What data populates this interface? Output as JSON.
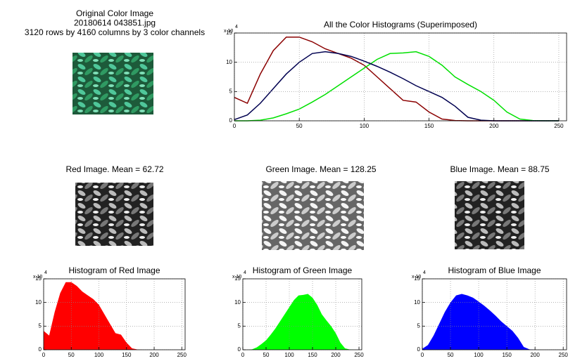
{
  "images": [
    {
      "title_lines": [
        "Original Color Image",
        "20180614 043851.jpg",
        "3120 rows by 4160 columns by 3 color channels"
      ]
    },
    {
      "title_lines": [
        "Red Image.  Mean =  62.72"
      ]
    },
    {
      "title_lines": [
        "Green Image.  Mean = 128.25"
      ]
    },
    {
      "title_lines": [
        "Blue Image.  Mean =  88.75"
      ]
    }
  ],
  "chart_data": [
    {
      "type": "line",
      "title": "All the Color Histograms (Superimposed)",
      "y_exponent": {
        "base": "x 10",
        "power": "4"
      },
      "x": [
        0,
        10,
        20,
        30,
        40,
        50,
        60,
        70,
        80,
        90,
        100,
        110,
        120,
        130,
        140,
        150,
        160,
        170,
        180,
        190,
        200,
        210,
        220,
        230,
        240,
        250
      ],
      "series": [
        {
          "name": "Red",
          "color": "#8b0000",
          "values": [
            4,
            3,
            8,
            12,
            14.3,
            14.3,
            13.5,
            12.3,
            11.5,
            10.7,
            9.5,
            7.5,
            5.5,
            3.5,
            3.2,
            1.5,
            0.3,
            0.05,
            0,
            0,
            0,
            0,
            0,
            0,
            0,
            0
          ]
        },
        {
          "name": "Green",
          "color": "#00e000",
          "values": [
            0,
            0,
            0.1,
            0.5,
            1.2,
            2,
            3.2,
            4.5,
            6,
            7.5,
            9,
            10.5,
            11.5,
            11.6,
            11.8,
            11,
            9.5,
            7.5,
            6.2,
            5,
            3.5,
            1.5,
            0.3,
            0.05,
            0,
            0
          ]
        },
        {
          "name": "Blue",
          "color": "#000050",
          "values": [
            0.2,
            1,
            3,
            5.5,
            8,
            10,
            11.5,
            11.8,
            11.5,
            11,
            10.2,
            9.3,
            8.3,
            7.2,
            6,
            5,
            4,
            2.5,
            0.6,
            0.1,
            0,
            0,
            0,
            0,
            0,
            0
          ]
        }
      ],
      "xlim": [
        0,
        256
      ],
      "xticks": [
        0,
        50,
        100,
        150,
        200,
        250
      ],
      "ylim": [
        0,
        15
      ],
      "yticks": [
        0,
        5,
        10,
        15
      ],
      "grid": true
    },
    {
      "type": "area",
      "title": "Histogram of Red Image",
      "y_exponent": {
        "base": "x 10",
        "power": "4"
      },
      "x": [
        0,
        10,
        20,
        30,
        40,
        50,
        60,
        70,
        80,
        90,
        100,
        110,
        120,
        130,
        140,
        150,
        160,
        170,
        180,
        190,
        200,
        210,
        220,
        230,
        240,
        250
      ],
      "values": [
        4,
        3,
        8,
        12,
        14.3,
        14.3,
        13.5,
        12.3,
        11.5,
        10.7,
        9.5,
        7.5,
        5.5,
        3.5,
        3.2,
        1.5,
        0.3,
        0.05,
        0,
        0,
        0,
        0,
        0,
        0,
        0,
        0
      ],
      "color": "#ff0000",
      "xlim": [
        0,
        256
      ],
      "xticks": [
        0,
        50,
        100,
        150,
        200,
        250
      ],
      "ylim": [
        0,
        15
      ],
      "yticks": [
        0,
        5,
        10,
        15
      ],
      "grid": true
    },
    {
      "type": "area",
      "title": "Histogram of Green Image",
      "y_exponent": {
        "base": "x 10",
        "power": "4"
      },
      "x": [
        0,
        10,
        20,
        30,
        40,
        50,
        60,
        70,
        80,
        90,
        100,
        110,
        120,
        130,
        140,
        150,
        160,
        170,
        180,
        190,
        200,
        210,
        220,
        230,
        240,
        250
      ],
      "values": [
        0,
        0,
        0.1,
        0.5,
        1.2,
        2,
        3.2,
        4.5,
        6,
        7.5,
        9,
        10.5,
        11.5,
        11.6,
        11.8,
        11,
        9.5,
        7.5,
        6.2,
        5,
        3.5,
        1.5,
        0.3,
        0.05,
        0,
        0
      ],
      "color": "#00ff00",
      "xlim": [
        0,
        256
      ],
      "xticks": [
        0,
        50,
        100,
        150,
        200,
        250
      ],
      "ylim": [
        0,
        15
      ],
      "yticks": [
        0,
        5,
        10,
        15
      ],
      "grid": true
    },
    {
      "type": "area",
      "title": "Histogram of Blue Image",
      "y_exponent": {
        "base": "x 10",
        "power": "4"
      },
      "x": [
        0,
        10,
        20,
        30,
        40,
        50,
        60,
        70,
        80,
        90,
        100,
        110,
        120,
        130,
        140,
        150,
        160,
        170,
        180,
        190,
        200,
        210,
        220,
        230,
        240,
        250
      ],
      "values": [
        0.2,
        1,
        3,
        5.5,
        8,
        10,
        11.5,
        11.8,
        11.5,
        11,
        10.2,
        9.3,
        8.3,
        7.2,
        6,
        5,
        4,
        2.5,
        0.6,
        0.1,
        0,
        0,
        0,
        0,
        0,
        0
      ],
      "color": "#0000ff",
      "xlim": [
        0,
        256
      ],
      "xticks": [
        0,
        50,
        100,
        150,
        200,
        250
      ],
      "ylim": [
        0,
        15
      ],
      "yticks": [
        0,
        5,
        10,
        15
      ],
      "grid": true
    }
  ]
}
